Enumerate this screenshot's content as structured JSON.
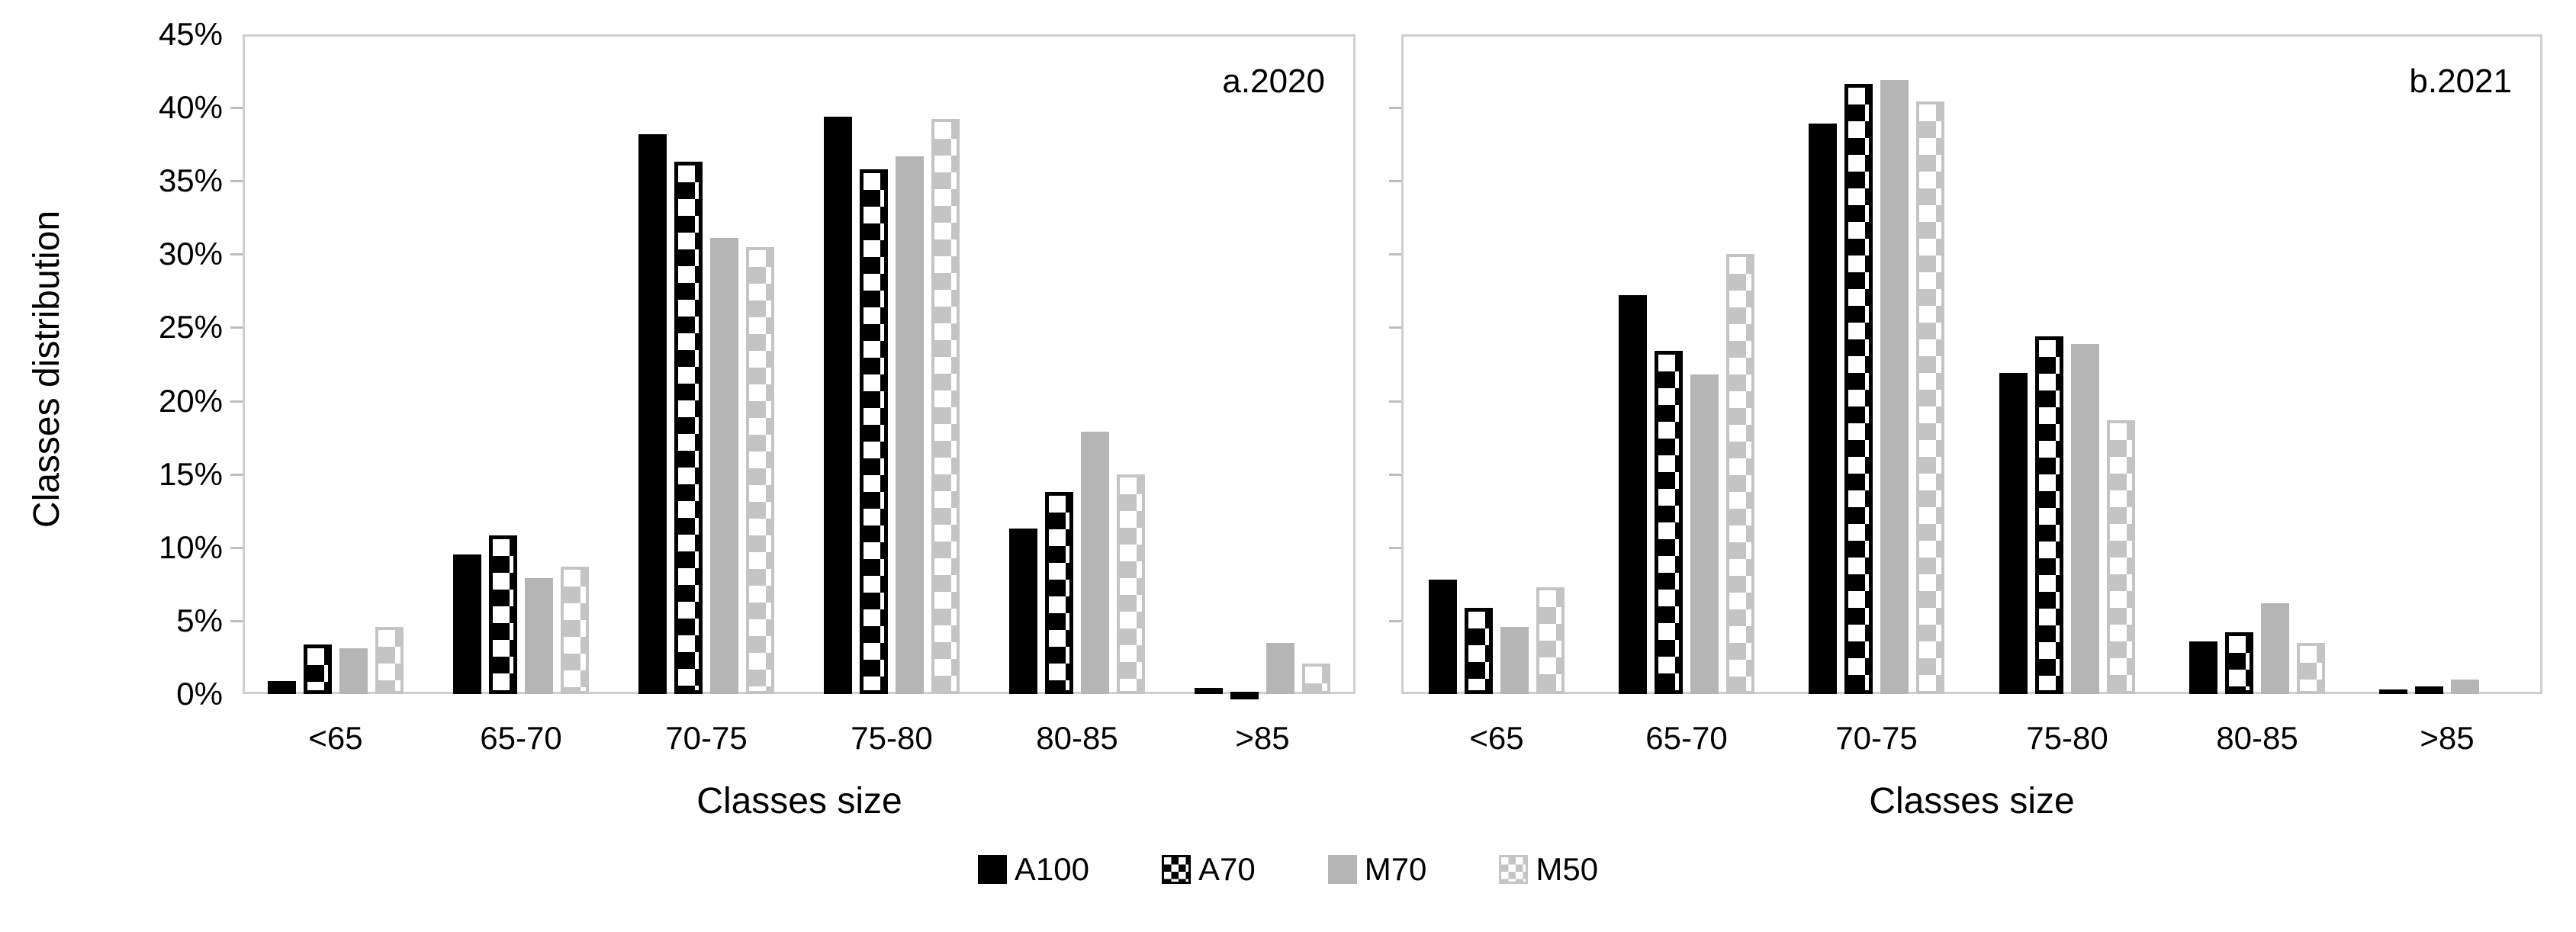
{
  "figure": {
    "y_axis_title": "Classes distribution",
    "x_axis_title": "Classes size",
    "y_ticks": [
      "0%",
      "5%",
      "10%",
      "15%",
      "20%",
      "25%",
      "30%",
      "35%",
      "40%",
      "45%"
    ],
    "legend": [
      {
        "name": "A100",
        "pattern": "solid-black"
      },
      {
        "name": "A70",
        "pattern": "checker-black"
      },
      {
        "name": "M70",
        "pattern": "solid-gray"
      },
      {
        "name": "M50",
        "pattern": "checker-gray"
      }
    ],
    "colors": {
      "series_black": "#000000",
      "series_gray": "#b5b5b5",
      "checker_gray": "#c4c4c4",
      "axis_line": "#cfcfcf",
      "tick": "#bdbdbd",
      "text": "#000000",
      "background": "#ffffff"
    }
  },
  "chart_data": [
    {
      "type": "bar",
      "panel_label": "a.2020",
      "categories": [
        "<65",
        "65-70",
        "70-75",
        "75-80",
        "80-85",
        ">85"
      ],
      "series": [
        {
          "name": "A100",
          "values": [
            0.9,
            9.5,
            38.2,
            39.4,
            11.3,
            0.4
          ]
        },
        {
          "name": "A70",
          "values": [
            3.4,
            10.8,
            36.3,
            35.8,
            13.8,
            0.1
          ]
        },
        {
          "name": "M70",
          "values": [
            3.1,
            7.9,
            31.1,
            36.7,
            17.9,
            3.5
          ]
        },
        {
          "name": "M50",
          "values": [
            4.6,
            8.7,
            30.5,
            39.2,
            15.0,
            2.1
          ]
        }
      ],
      "xlabel": "Classes size",
      "ylabel": "Classes distribution",
      "ylim": [
        0,
        45
      ],
      "ytick_step": 5,
      "ytick_format": "percent",
      "grid": false,
      "show_y_labels": true
    },
    {
      "type": "bar",
      "panel_label": "b.2021",
      "categories": [
        "<65",
        "65-70",
        "70-75",
        "75-80",
        "80-85",
        ">85"
      ],
      "series": [
        {
          "name": "A100",
          "values": [
            7.8,
            27.2,
            38.9,
            21.9,
            3.6,
            0.3
          ]
        },
        {
          "name": "A70",
          "values": [
            5.9,
            23.4,
            41.6,
            24.4,
            4.2,
            0.5
          ]
        },
        {
          "name": "M70",
          "values": [
            4.6,
            21.8,
            41.9,
            23.9,
            6.2,
            1.0
          ]
        },
        {
          "name": "M50",
          "values": [
            7.3,
            30.0,
            40.4,
            18.7,
            3.5,
            0.0
          ]
        }
      ],
      "xlabel": "Classes size",
      "ylabel": "",
      "ylim": [
        0,
        45
      ],
      "ytick_step": 5,
      "ytick_format": "percent",
      "grid": false,
      "show_y_labels": false
    }
  ],
  "layout_hint": {
    "legend_position": "bottom-center",
    "panels": "two-side-by-side"
  }
}
